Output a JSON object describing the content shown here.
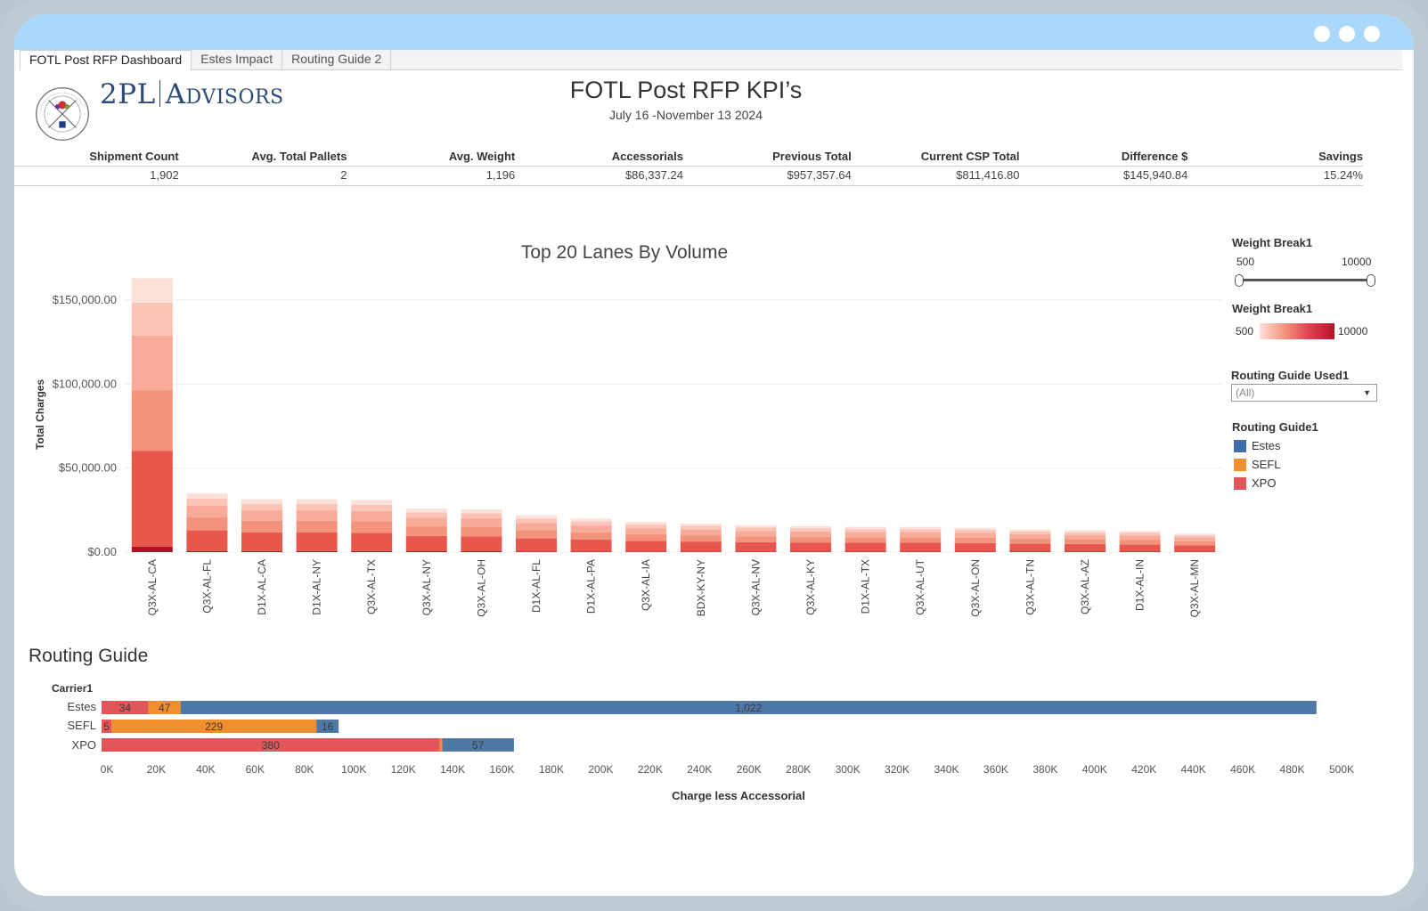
{
  "tabs": [
    "FOTL Post RFP Dashboard",
    "Estes Impact",
    "Routing Guide 2"
  ],
  "logo": {
    "brand_part1": "2PL",
    "brand_part2": "Advisors",
    "seal_text": "FRUIT OF THE LOOM, INC."
  },
  "header": {
    "title": "FOTL Post RFP KPI’s",
    "subtitle": "July 16 -November 13 2024"
  },
  "kpis": [
    {
      "label": "Shipment Count",
      "value": "1,902"
    },
    {
      "label": "Avg. Total Pallets",
      "value": "2"
    },
    {
      "label": "Avg. Weight",
      "value": "1,196"
    },
    {
      "label": "Accessorials",
      "value": "$86,337.24"
    },
    {
      "label": "Previous Total",
      "value": "$957,357.64"
    },
    {
      "label": "Current CSP Total",
      "value": "$811,416.80"
    },
    {
      "label": "Difference $",
      "value": "$145,940.84"
    },
    {
      "label": "Savings",
      "value": "15.24%"
    }
  ],
  "filters": {
    "weight_slider_title": "Weight Break1",
    "weight_min": "500",
    "weight_max": "10000",
    "weight_color_title": "Weight Break1",
    "routing_used_title": "Routing Guide Used1",
    "routing_used_value": "(All)",
    "routing_legend_title": "Routing Guide1",
    "routing_legend": [
      {
        "label": "Estes",
        "color": "#3f6fa8"
      },
      {
        "label": "SEFL",
        "color": "#f28e2b"
      },
      {
        "label": "XPO",
        "color": "#e15759"
      }
    ]
  },
  "chart_data": [
    {
      "type": "bar",
      "stacked": true,
      "title": "Top 20 Lanes By Volume",
      "ylabel": "Total Charges",
      "xlabel": "",
      "ylim": [
        0,
        160000
      ],
      "yticks": [
        0,
        50000,
        100000,
        150000
      ],
      "ytick_labels": [
        "$0.00",
        "$50,000.00",
        "$100,000.00",
        "$150,000.00"
      ],
      "categories": [
        "Q3X-AL-CA",
        "Q3X-AL-FL",
        "D1X-AL-CA",
        "D1X-AL-NY",
        "Q3X-AL-TX",
        "Q3X-AL-NY",
        "Q3X-AL-OH",
        "D1X-AL-FL",
        "D1X-AL-PA",
        "Q3X-AL-IA",
        "BDX-KY-NY",
        "Q3X-AL-NV",
        "Q3X-AL-KY",
        "D1X-AL-TX",
        "Q3X-AL-UT",
        "Q3X-AL-ON",
        "Q3X-AL-TN",
        "Q3X-AL-AZ",
        "D1X-AL-IN",
        "Q3X-AL-MN"
      ],
      "totals": [
        163000,
        35000,
        31500,
        31500,
        31000,
        26000,
        25500,
        22000,
        20000,
        18000,
        17000,
        16000,
        15500,
        15000,
        15000,
        14500,
        13500,
        13000,
        12500,
        11000
      ],
      "segment_colors": [
        "#b5102a",
        "#e8574c",
        "#f4937c",
        "#f7ab98",
        "#fbc4b6",
        "#fde0d8"
      ]
    },
    {
      "type": "bar",
      "orientation": "horizontal",
      "stacked": true,
      "title": "Routing Guide",
      "xlabel": "Charge less Accessorial",
      "ylabel": "Carrier1",
      "xlim": [
        0,
        500000
      ],
      "xticks": [
        0,
        20000,
        40000,
        60000,
        80000,
        100000,
        120000,
        140000,
        160000,
        180000,
        200000,
        220000,
        240000,
        260000,
        280000,
        300000,
        320000,
        340000,
        360000,
        380000,
        400000,
        420000,
        440000,
        460000,
        480000,
        500000
      ],
      "xtick_labels": [
        "0K",
        "20K",
        "40K",
        "60K",
        "80K",
        "100K",
        "120K",
        "140K",
        "160K",
        "180K",
        "200K",
        "220K",
        "240K",
        "260K",
        "280K",
        "300K",
        "320K",
        "340K",
        "360K",
        "380K",
        "400K",
        "420K",
        "440K",
        "460K",
        "480K",
        "500K"
      ],
      "categories": [
        "Estes",
        "SEFL",
        "XPO"
      ],
      "series": [
        {
          "name": "XPO",
          "color": "#e15759",
          "values": [
            19000,
            4000,
            137000
          ],
          "labels": [
            "34",
            "5",
            "380"
          ]
        },
        {
          "name": "SEFL",
          "color": "#f28e2b",
          "values": [
            13000,
            83000,
            1000
          ],
          "labels": [
            "47",
            "229",
            ""
          ]
        },
        {
          "name": "Estes",
          "color": "#4e79a7",
          "values": [
            460000,
            9000,
            29000
          ],
          "labels": [
            "1,022",
            "16",
            "57"
          ]
        }
      ]
    }
  ]
}
